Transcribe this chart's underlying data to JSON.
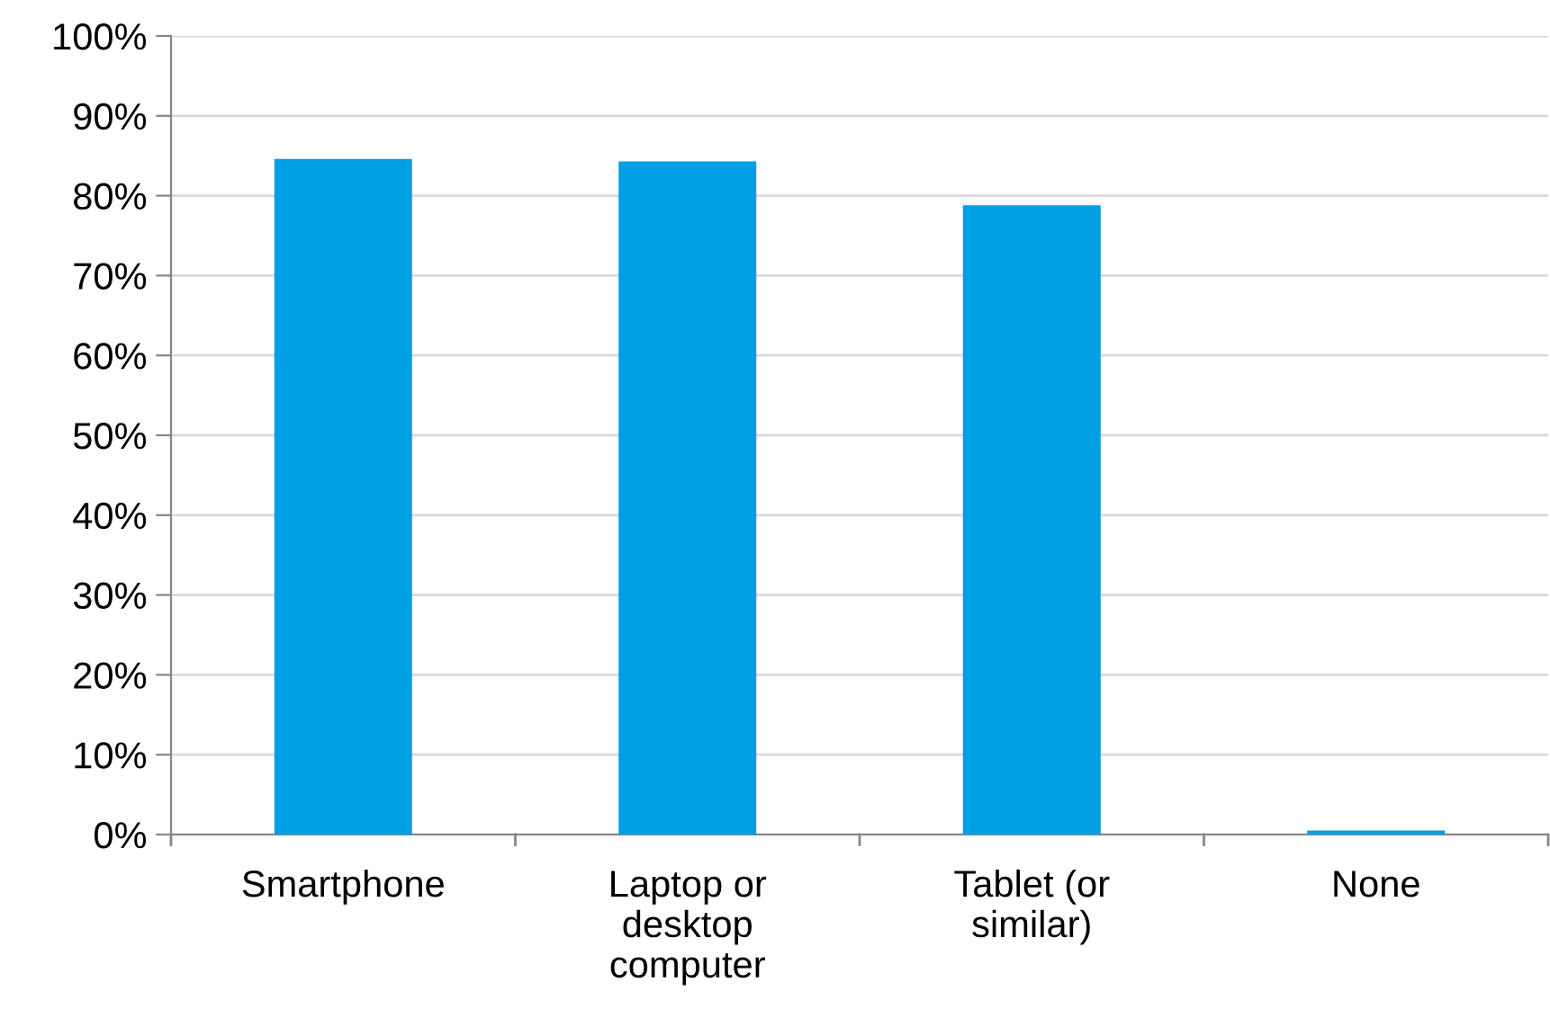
{
  "chart_data": {
    "type": "bar",
    "categories": [
      "Smartphone",
      "Laptop or\ndesktop\ncomputer",
      "Tablet (or\nsimilar)",
      "None"
    ],
    "values": [
      84.6,
      84.3,
      78.8,
      0.5
    ],
    "color": "#009fe3",
    "ylim": [
      0,
      100
    ],
    "yticks": [
      {
        "value": 0,
        "label": "0%"
      },
      {
        "value": 10,
        "label": "10%"
      },
      {
        "value": 20,
        "label": "20%"
      },
      {
        "value": 30,
        "label": "30%"
      },
      {
        "value": 40,
        "label": "40%"
      },
      {
        "value": 50,
        "label": "50%"
      },
      {
        "value": 60,
        "label": "60%"
      },
      {
        "value": 70,
        "label": "70%"
      },
      {
        "value": 80,
        "label": "80%"
      },
      {
        "value": 90,
        "label": "90%"
      },
      {
        "value": 100,
        "label": "100%"
      }
    ],
    "grid": "y",
    "legend": false
  }
}
